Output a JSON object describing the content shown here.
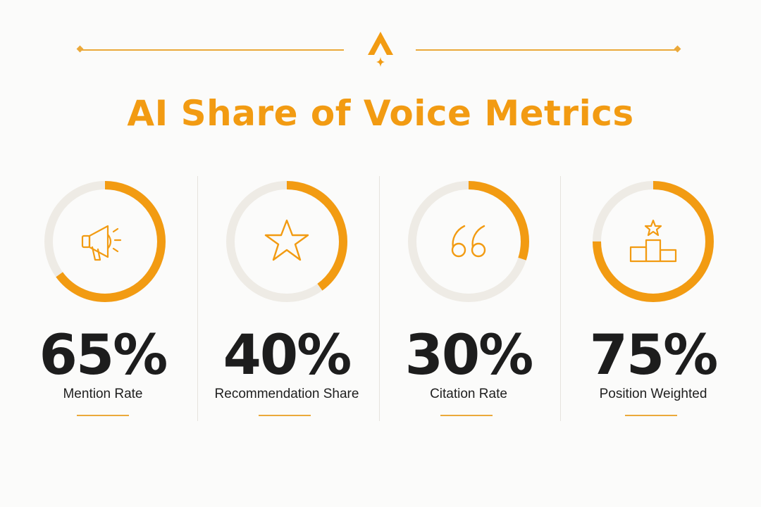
{
  "title": "AI Share of Voice Metrics",
  "colors": {
    "accent": "#f29b12",
    "track": "#eeebe5",
    "text": "#1d1d1d",
    "background": "#fbfbfa"
  },
  "chart_data": {
    "type": "donut",
    "title": "AI Share of Voice Metrics",
    "max": 100,
    "items": [
      {
        "label": "Mention Rate",
        "value": 65,
        "display": "65%",
        "icon": "megaphone-icon"
      },
      {
        "label": "Recommendation Share",
        "value": 40,
        "display": "40%",
        "icon": "star-icon"
      },
      {
        "label": "Citation Rate",
        "value": 30,
        "display": "30%",
        "icon": "quote-icon"
      },
      {
        "label": "Position Weighted",
        "value": 75,
        "display": "75%",
        "icon": "podium-icon"
      }
    ]
  }
}
